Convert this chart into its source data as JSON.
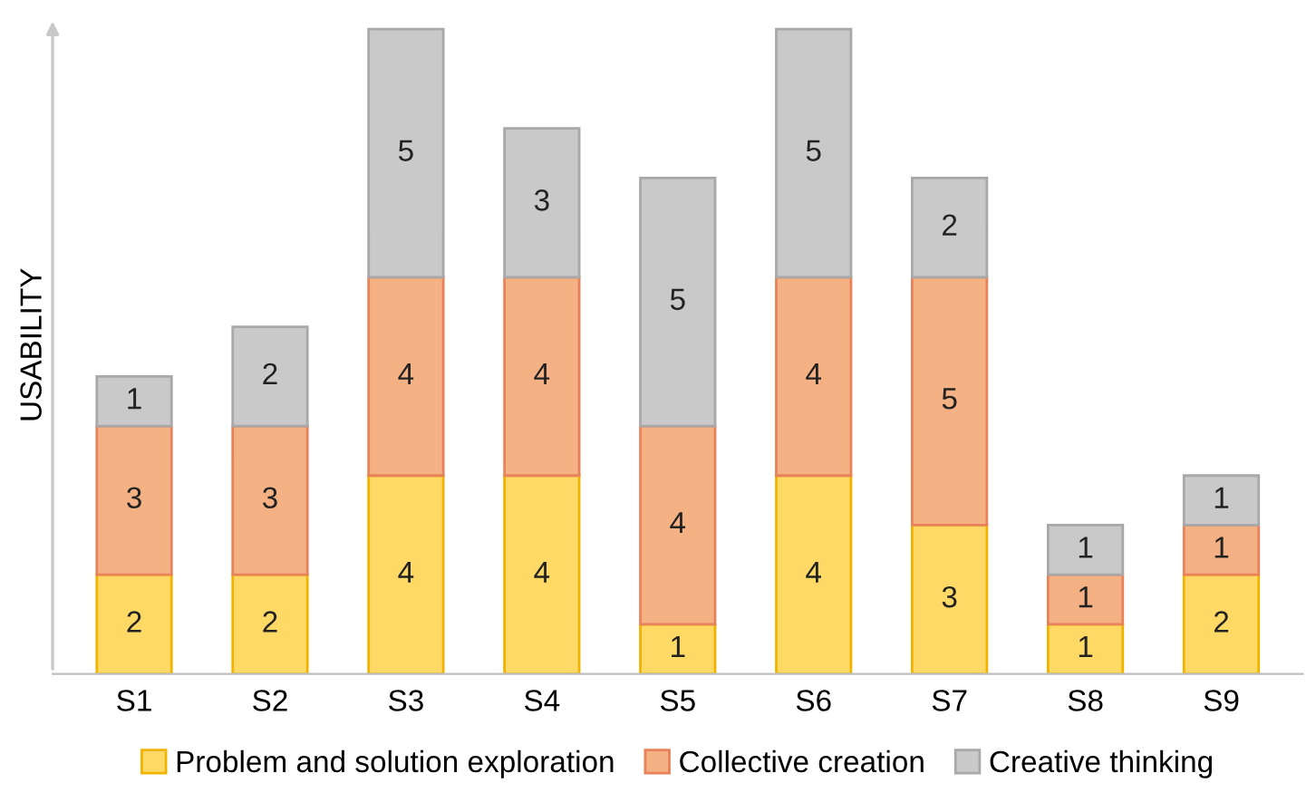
{
  "chart_data": {
    "type": "bar",
    "stacked": true,
    "ylabel": "USABILITY",
    "categories": [
      "S1",
      "S2",
      "S3",
      "S4",
      "S5",
      "S6",
      "S7",
      "S8",
      "S9"
    ],
    "series": [
      {
        "name": "Problem and solution exploration",
        "color": "#ffd966",
        "values": [
          2,
          2,
          4,
          4,
          1,
          4,
          3,
          1,
          2
        ]
      },
      {
        "name": "Collective creation",
        "color": "#f4b183",
        "values": [
          3,
          3,
          4,
          4,
          4,
          4,
          5,
          1,
          1
        ]
      },
      {
        "name": "Creative thinking",
        "color": "#c9c9c9",
        "values": [
          1,
          2,
          5,
          3,
          5,
          5,
          2,
          1,
          1
        ]
      }
    ],
    "data_labels": true,
    "legend": "bottom",
    "grid": false
  }
}
